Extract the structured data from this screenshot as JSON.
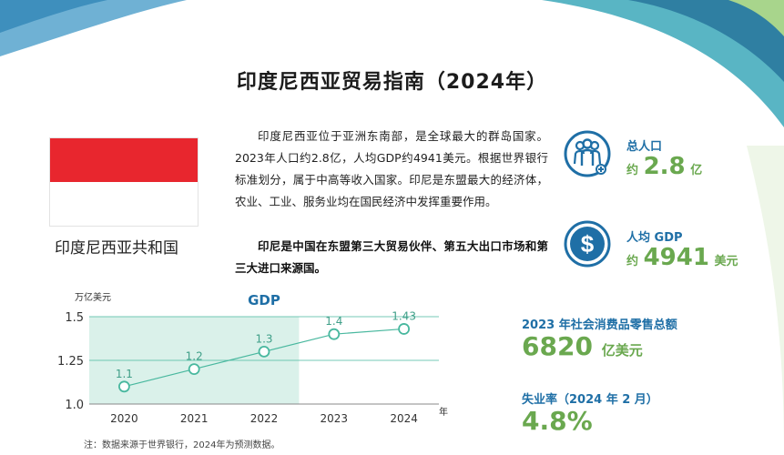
{
  "title": "印度尼西亚贸易指南（2024年）",
  "country": {
    "name": "印度尼西亚共和国",
    "flag_colors": {
      "top": "#e8262e",
      "bottom": "#ffffff"
    }
  },
  "intro": "印度尼西亚位于亚洲东南部，是全球最大的群岛国家。2023年人口约2.8亿，人均GDP约4941美元。根据世界银行标准划分，属于中高等收入国家。印尼是东盟最大的经济体，农业、工业、服务业均在国民经济中发挥重要作用。",
  "highlight": "印尼是中国在东盟第三大贸易伙伴、第五大出口市场和第三大进口来源国。",
  "stats": {
    "population": {
      "label": "总人口",
      "prefix": "约",
      "value": "2.8",
      "unit": "亿",
      "icon": "people-icon"
    },
    "gdp_per_capita": {
      "label": "人均 GDP",
      "prefix": "约",
      "value": "4941",
      "unit": "美元",
      "icon": "dollar-icon"
    }
  },
  "economy": {
    "retail": {
      "label": "2023 年社会消费品零售总额",
      "value": "6820",
      "unit": "亿美元"
    },
    "unemployment": {
      "label": "失业率（2024 年 2 月）",
      "value": "4.8%"
    }
  },
  "chart_data": {
    "type": "line",
    "title": "GDP",
    "ylabel": "万亿美元",
    "xlabel": "年",
    "categories": [
      "2020",
      "2021",
      "2022",
      "2023",
      "2024"
    ],
    "values": [
      1.1,
      1.2,
      1.3,
      1.4,
      1.43
    ],
    "data_labels": [
      "1.1",
      "1.2",
      "1.3",
      "1.4",
      "1.43"
    ],
    "ylim": [
      1.0,
      1.5
    ],
    "yticks": [
      1.0,
      1.25,
      1.5
    ],
    "ytick_labels": [
      "1.0",
      "1.25",
      "1.5"
    ],
    "grid": true
  },
  "note": "注：数据来源于世界银行，2024年为预测数据。",
  "colors": {
    "accent_blue": "#1f6fa6",
    "accent_green": "#6aa84f",
    "chart_line": "#49b89f",
    "chart_band": "#daf1ea"
  }
}
